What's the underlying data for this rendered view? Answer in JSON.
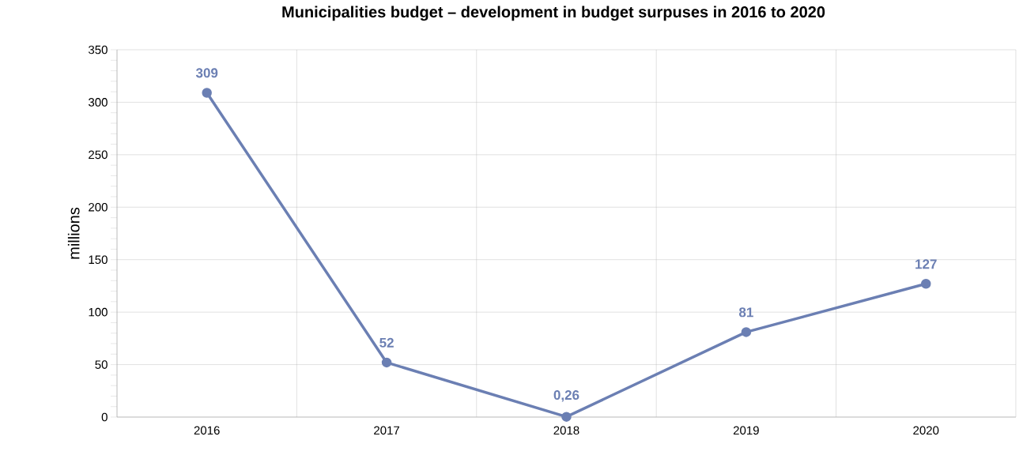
{
  "chart_data": {
    "type": "line",
    "title": "Municipalities budget – development in budget surpuses in 2016 to 2020",
    "ylabel": "millions",
    "categories": [
      "2016",
      "2017",
      "2018",
      "2019",
      "2020"
    ],
    "values": [
      309,
      52,
      0.26,
      81,
      127
    ],
    "value_labels": [
      "309",
      "52",
      "0,26",
      "81",
      "127"
    ],
    "color": "#6b7fb3",
    "marker": "circle",
    "line_style": "solid",
    "ylim": [
      0,
      350
    ],
    "yticks": [
      0,
      50,
      100,
      150,
      200,
      250,
      300,
      350
    ],
    "grid": true
  }
}
